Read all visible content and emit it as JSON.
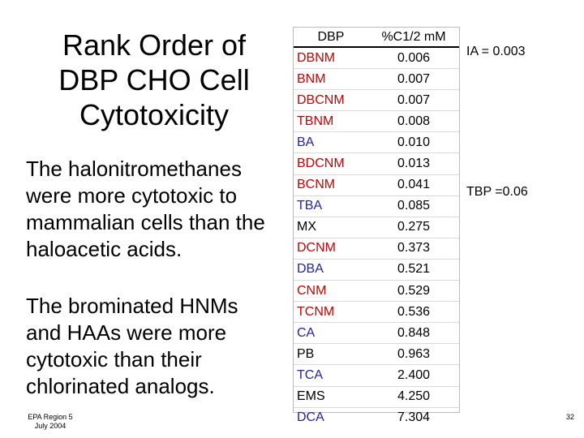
{
  "title_lines": [
    "Rank Order of",
    "DBP CHO Cell",
    "Cytotoxicity"
  ],
  "paragraph1_lines": [
    "The halonitromethanes",
    "were more cytotoxic to",
    "mammalian cells than the",
    "haloacetic acids."
  ],
  "paragraph2_lines": [
    "The brominated HNMs",
    "and HAAs were more",
    "cytotoxic than their",
    "chlorinated analogs."
  ],
  "table": {
    "headers": [
      "DBP",
      "%C1/2 mM"
    ],
    "rows": [
      {
        "compound": "DBNM",
        "value": "0.006",
        "color": "#cc0000"
      },
      {
        "compound": "BNM",
        "value": "0.007",
        "color": "#cc0000"
      },
      {
        "compound": "DBCNM",
        "value": "0.007",
        "color": "#cc0000"
      },
      {
        "compound": "TBNM",
        "value": "0.008",
        "color": "#cc0000"
      },
      {
        "compound": "BA",
        "value": "0.010",
        "color": "#2222aa"
      },
      {
        "compound": "BDCNM",
        "value": "0.013",
        "color": "#cc0000"
      },
      {
        "compound": "BCNM",
        "value": "0.041",
        "color": "#cc0000"
      },
      {
        "compound": "TBA",
        "value": "0.085",
        "color": "#2222aa"
      },
      {
        "compound": "MX",
        "value": "0.275",
        "color": "#000000"
      },
      {
        "compound": "DCNM",
        "value": "0.373",
        "color": "#cc0000"
      },
      {
        "compound": "DBA",
        "value": "0.521",
        "color": "#2222aa"
      },
      {
        "compound": "CNM",
        "value": "0.529",
        "color": "#cc0000"
      },
      {
        "compound": "TCNM",
        "value": "0.536",
        "color": "#cc0000"
      },
      {
        "compound": "CA",
        "value": "0.848",
        "color": "#2222aa"
      },
      {
        "compound": "PB",
        "value": "0.963",
        "color": "#000000"
      },
      {
        "compound": "TCA",
        "value": "2.400",
        "color": "#2222aa"
      },
      {
        "compound": "EMS",
        "value": "4.250",
        "color": "#000000"
      },
      {
        "compound": "DCA",
        "value": "7.304",
        "color": "#2222aa"
      }
    ]
  },
  "notes": {
    "ia": "IA = 0.003",
    "tbp": "TBP =0.06"
  },
  "footer": {
    "org_lines": [
      "EPA Region 5",
      "July 2004"
    ],
    "page": "32"
  }
}
